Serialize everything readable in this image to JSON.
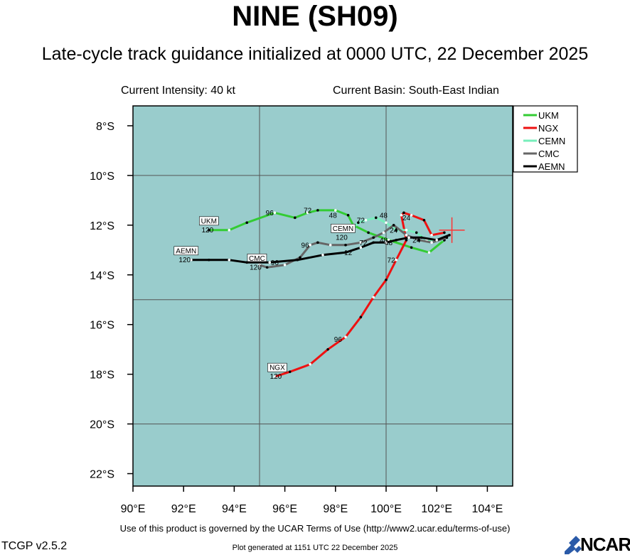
{
  "header": {
    "title": "NINE (SH09)",
    "subtitle": "Late-cycle track guidance initialized at 0000 UTC, 22 December 2025",
    "intensity": "Current Intensity: 40 kt",
    "basin": "Current Basin: South-East Indian"
  },
  "footer": {
    "terms": "Use of this product is governed by the UCAR Terms of Use (http://www2.ucar.edu/terms-of-use)",
    "version": "TCGP v2.5.2",
    "generated": "Plot generated at 1151 UTC   22 December 2025",
    "logo_text": "NCAR"
  },
  "colors": {
    "ocean": "#99cccc",
    "grid": "#555555",
    "current_position": "#ff3333"
  },
  "map": {
    "lon_range": [
      90,
      105
    ],
    "lat_range": [
      -22.5,
      -7.2
    ],
    "lon_ticks": [
      {
        "value": 90,
        "label": "90°E"
      },
      {
        "value": 92,
        "label": "92°E"
      },
      {
        "value": 94,
        "label": "94°E"
      },
      {
        "value": 96,
        "label": "96°E"
      },
      {
        "value": 98,
        "label": "98°E"
      },
      {
        "value": 100,
        "label": "100°E"
      },
      {
        "value": 102,
        "label": "102°E"
      },
      {
        "value": 104,
        "label": "104°E"
      }
    ],
    "lat_ticks": [
      {
        "value": -8,
        "label": "8°S"
      },
      {
        "value": -10,
        "label": "10°S"
      },
      {
        "value": -12,
        "label": "12°S"
      },
      {
        "value": -14,
        "label": "14°S"
      },
      {
        "value": -16,
        "label": "16°S"
      },
      {
        "value": -18,
        "label": "18°S"
      },
      {
        "value": -20,
        "label": "20°S"
      },
      {
        "value": -22,
        "label": "22°S"
      }
    ],
    "gridlines": {
      "lon": [
        95,
        100
      ],
      "lat": [
        -15,
        -20,
        -10
      ]
    },
    "current_position": {
      "lon": 102.6,
      "lat": -12.2
    },
    "legend": [
      {
        "name": "UKM",
        "color": "#33cc33"
      },
      {
        "name": "NGX",
        "color": "#ee1111"
      },
      {
        "name": "CEMN",
        "color": "#77eebb"
      },
      {
        "name": "CMC",
        "color": "#666666"
      },
      {
        "name": "AEMN",
        "color": "#000000"
      }
    ],
    "tracks": [
      {
        "name": "UKM",
        "color": "#33cc33",
        "points": [
          [
            102.3,
            -12.6
          ],
          [
            101.7,
            -13.1
          ],
          [
            101.0,
            -12.9
          ],
          [
            100.1,
            -12.6
          ],
          [
            99.3,
            -12.3
          ],
          [
            98.7,
            -12.0
          ],
          [
            98.5,
            -11.6
          ],
          [
            98.0,
            -11.4
          ],
          [
            97.3,
            -11.4
          ],
          [
            96.9,
            -11.5
          ],
          [
            96.4,
            -11.7
          ],
          [
            95.6,
            -11.5
          ],
          [
            94.5,
            -11.9
          ],
          [
            93.8,
            -12.2
          ],
          [
            93.0,
            -12.2
          ]
        ],
        "labels": [
          {
            "text": "48",
            "lon": 97.9,
            "lat": -11.7
          },
          {
            "text": "72",
            "lon": 96.9,
            "lat": -11.5
          },
          {
            "text": "96",
            "lon": 95.4,
            "lat": -11.6
          }
        ],
        "tag": {
          "text": "UKM",
          "lon": 93.0,
          "lat": -12.0,
          "time": "120"
        }
      },
      {
        "name": "NGX",
        "color": "#ee1111",
        "points": [
          [
            102.3,
            -12.3
          ],
          [
            101.8,
            -12.4
          ],
          [
            101.5,
            -11.8
          ],
          [
            101.0,
            -11.6
          ],
          [
            100.7,
            -11.5
          ],
          [
            100.6,
            -11.6
          ],
          [
            100.8,
            -12.6
          ],
          [
            100.4,
            -13.4
          ],
          [
            100.0,
            -14.2
          ],
          [
            99.5,
            -14.9
          ],
          [
            99.0,
            -15.7
          ],
          [
            98.4,
            -16.5
          ],
          [
            97.7,
            -17.0
          ],
          [
            97.0,
            -17.6
          ],
          [
            96.2,
            -17.9
          ],
          [
            95.6,
            -18.1
          ]
        ],
        "labels": [
          {
            "text": "72",
            "lon": 100.2,
            "lat": -13.5
          },
          {
            "text": "96",
            "lon": 98.1,
            "lat": -16.7
          }
        ],
        "tag": {
          "text": "NGX",
          "lon": 95.7,
          "lat": -17.9,
          "time": "120"
        }
      },
      {
        "name": "CEMN",
        "color": "#77eebb",
        "points": [
          [
            102.3,
            -12.6
          ],
          [
            101.6,
            -12.6
          ],
          [
            101.2,
            -12.3
          ],
          [
            100.8,
            -12.2
          ],
          [
            100.4,
            -12.2
          ],
          [
            100.0,
            -11.9
          ],
          [
            99.6,
            -11.7
          ],
          [
            99.2,
            -11.8
          ],
          [
            98.9,
            -11.9
          ],
          [
            98.7,
            -12.1
          ]
        ],
        "labels": [
          {
            "text": "24",
            "lon": 100.8,
            "lat": -11.8
          },
          {
            "text": "48",
            "lon": 99.9,
            "lat": -11.7
          },
          {
            "text": "72",
            "lon": 99.0,
            "lat": -11.9
          }
        ],
        "tag": {
          "text": "CEMN",
          "lon": 98.3,
          "lat": -12.3,
          "time": "120"
        }
      },
      {
        "name": "CMC",
        "color": "#666666",
        "points": [
          [
            102.4,
            -12.5
          ],
          [
            101.8,
            -12.7
          ],
          [
            101.3,
            -12.6
          ],
          [
            100.8,
            -12.4
          ],
          [
            100.3,
            -12.0
          ],
          [
            99.9,
            -12.3
          ],
          [
            99.5,
            -12.5
          ],
          [
            99.0,
            -12.7
          ],
          [
            98.4,
            -12.8
          ],
          [
            97.8,
            -12.8
          ],
          [
            97.3,
            -12.7
          ],
          [
            97.0,
            -12.8
          ],
          [
            96.6,
            -13.3
          ],
          [
            96.0,
            -13.6
          ],
          [
            95.3,
            -13.7
          ],
          [
            95.0,
            -13.6
          ]
        ],
        "labels": [
          {
            "text": "24",
            "lon": 100.3,
            "lat": -12.3
          },
          {
            "text": "48",
            "lon": 99.9,
            "lat": -12.7
          },
          {
            "text": "96",
            "lon": 96.8,
            "lat": -12.9
          }
        ],
        "tag": {
          "text": "CMC",
          "lon": 94.9,
          "lat": -13.5,
          "time": "120"
        }
      },
      {
        "name": "AEMN",
        "color": "#000000",
        "points": [
          [
            102.5,
            -12.4
          ],
          [
            102.0,
            -12.6
          ],
          [
            101.4,
            -12.5
          ],
          [
            100.9,
            -12.5
          ],
          [
            100.4,
            -12.6
          ],
          [
            100.0,
            -12.7
          ],
          [
            99.5,
            -12.7
          ],
          [
            99.0,
            -12.9
          ],
          [
            98.4,
            -13.1
          ],
          [
            97.5,
            -13.2
          ],
          [
            96.5,
            -13.4
          ],
          [
            95.4,
            -13.5
          ],
          [
            94.5,
            -13.5
          ],
          [
            93.8,
            -13.4
          ],
          [
            93.0,
            -13.4
          ],
          [
            92.3,
            -13.4
          ]
        ],
        "labels": [
          {
            "text": "24",
            "lon": 101.2,
            "lat": -12.7
          },
          {
            "text": "48",
            "lon": 100.1,
            "lat": -12.8
          },
          {
            "text": "72",
            "lon": 99.1,
            "lat": -12.8
          },
          {
            "text": "96",
            "lon": 95.6,
            "lat": -13.6
          },
          {
            "text": "12",
            "lon": 98.5,
            "lat": -13.2
          }
        ],
        "tag": {
          "text": "AEMN",
          "lon": 92.1,
          "lat": -13.2,
          "time": "120"
        }
      }
    ]
  }
}
